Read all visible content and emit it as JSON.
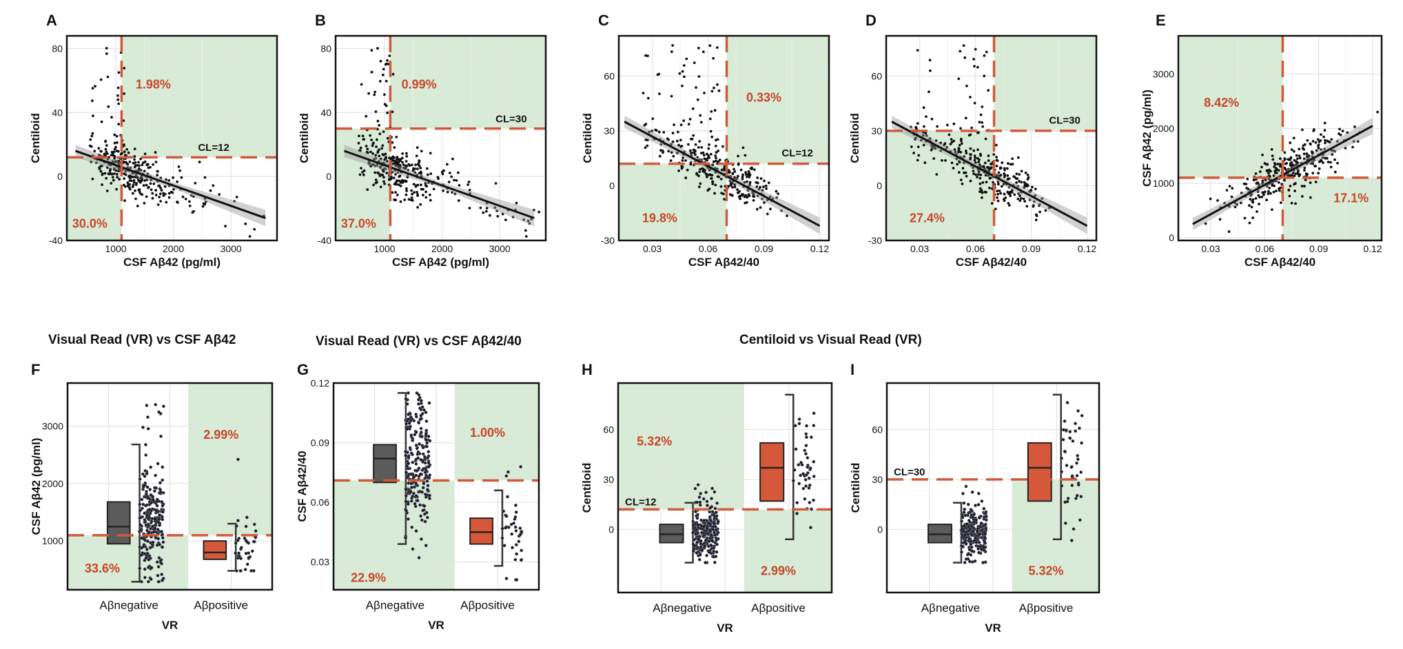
{
  "figure": {
    "titles": [
      {
        "text": "Visual Read (VR) vs CSF Aβ42"
      },
      {
        "text": "Visual Read (VR) vs CSF Aβ42/40"
      },
      {
        "text": "Centiloid  vs Visual Read (VR)"
      }
    ],
    "colors": {
      "shade": "#d7ebd6",
      "cut": "#d2593a",
      "pct": "#c8462a",
      "negBox": "#5b5b5b",
      "posBox": "#d6583a",
      "grid": "#e3e3e3",
      "dot": "#111111"
    }
  },
  "chart_data": [
    {
      "type": "scatter",
      "panel": "A",
      "xlabel": "CSF Aβ42 (pg/ml)",
      "ylabel": "Centiloid",
      "xlim": [
        150,
        3800
      ],
      "ylim": [
        -40,
        88
      ],
      "xticks": [
        "1000",
        "2000",
        "3000"
      ],
      "xtickValues": [
        1000,
        2000,
        3000
      ],
      "yticks": [
        "-40",
        "0",
        "40",
        "80"
      ],
      "ytickValues": [
        -40,
        0,
        40,
        80
      ],
      "cut_x": 1100,
      "cut_y": 12,
      "cut_label": "CL=12",
      "cut_label_at": [
        2700,
        16
      ],
      "regression": {
        "x0": 300,
        "y0": 16,
        "x1": 3600,
        "y1": -26
      },
      "shades": [
        [
          1100,
          3800,
          12,
          88
        ],
        [
          150,
          1100,
          -40,
          12
        ]
      ],
      "percents": [
        {
          "text": "1.98%",
          "x": 1650,
          "y": 55
        },
        {
          "text": "30.0%",
          "x": 550,
          "y": -32
        }
      ],
      "seed": 11,
      "n": 330
    },
    {
      "type": "scatter",
      "panel": "B",
      "xlabel": "CSF Aβ42 (pg/ml)",
      "ylabel": "Centiloid",
      "xlim": [
        150,
        3800
      ],
      "ylim": [
        -40,
        88
      ],
      "xticks": [
        "1000",
        "2000",
        "3000"
      ],
      "xtickValues": [
        1000,
        2000,
        3000
      ],
      "yticks": [
        "-40",
        "0",
        "40",
        "80"
      ],
      "ytickValues": [
        -40,
        0,
        40,
        80
      ],
      "cut_x": 1100,
      "cut_y": 30,
      "cut_label": "CL=30",
      "cut_label_at": [
        3200,
        34
      ],
      "regression": {
        "x0": 300,
        "y0": 16,
        "x1": 3600,
        "y1": -26
      },
      "shades": [
        [
          1100,
          3800,
          30,
          88
        ],
        [
          150,
          1100,
          -40,
          30
        ]
      ],
      "percents": [
        {
          "text": "0.99%",
          "x": 1600,
          "y": 55
        },
        {
          "text": "37.0%",
          "x": 550,
          "y": -32
        }
      ],
      "seed": 23,
      "n": 330
    },
    {
      "type": "scatter",
      "panel": "C",
      "xlabel": "CSF Aβ42/40",
      "ylabel": "Centiloid",
      "xlim": [
        0.012,
        0.125
      ],
      "ylim": [
        -30,
        82
      ],
      "xticks": [
        "0.03",
        "0.06",
        "0.09",
        "0.12"
      ],
      "xtickValues": [
        0.03,
        0.06,
        0.09,
        0.12
      ],
      "yticks": [
        "-30",
        "0",
        "30",
        "60"
      ],
      "ytickValues": [
        -30,
        0,
        30,
        60
      ],
      "cut_x": 0.07,
      "cut_y": 12,
      "cut_label": "CL=12",
      "cut_label_at": [
        0.108,
        16
      ],
      "regression": {
        "x0": 0.015,
        "y0": 35,
        "x1": 0.12,
        "y1": -22
      },
      "shades": [
        [
          0.07,
          0.125,
          12,
          82
        ],
        [
          0.012,
          0.07,
          -30,
          12
        ]
      ],
      "percents": [
        {
          "text": "0.33%",
          "x": 0.09,
          "y": 46
        },
        {
          "text": "19.8%",
          "x": 0.034,
          "y": -20
        }
      ],
      "seed": 37,
      "n": 330
    },
    {
      "type": "scatter",
      "panel": "D",
      "xlabel": "CSF Aβ42/40",
      "ylabel": "Centiloid",
      "xlim": [
        0.012,
        0.125
      ],
      "ylim": [
        -30,
        82
      ],
      "xticks": [
        "0.03",
        "0.06",
        "0.09",
        "0.12"
      ],
      "xtickValues": [
        0.03,
        0.06,
        0.09,
        0.12
      ],
      "yticks": [
        "-30",
        "0",
        "30",
        "60"
      ],
      "ytickValues": [
        -30,
        0,
        30,
        60
      ],
      "cut_x": 0.07,
      "cut_y": 30,
      "cut_label": "CL=30",
      "cut_label_at": [
        0.108,
        34
      ],
      "regression": {
        "x0": 0.015,
        "y0": 35,
        "x1": 0.12,
        "y1": -22
      },
      "shades": [
        [
          0.07,
          0.125,
          30,
          82
        ],
        [
          0.012,
          0.07,
          -30,
          30
        ]
      ],
      "percents": [
        {
          "text": "27.4%",
          "x": 0.034,
          "y": -20
        }
      ],
      "seed": 41,
      "n": 330
    },
    {
      "type": "scatter",
      "panel": "E",
      "xlabel": "CSF Aβ42/40",
      "ylabel": "CSF Aβ42 (pg/ml)",
      "xlim": [
        0.012,
        0.125
      ],
      "ylim": [
        -50,
        3700
      ],
      "xticks": [
        "0.03",
        "0.06",
        "0.09",
        "0.12"
      ],
      "xtickValues": [
        0.03,
        0.06,
        0.09,
        0.12
      ],
      "yticks": [
        "0",
        "1000",
        "2000",
        "3000"
      ],
      "ytickValues": [
        0,
        1000,
        2000,
        3000
      ],
      "cut_x": 0.07,
      "cut_y": 1100,
      "cut_label": "",
      "cut_label_at": [
        0,
        0
      ],
      "regression": {
        "x0": 0.02,
        "y0": 250,
        "x1": 0.12,
        "y1": 2050
      },
      "shades": [
        [
          0.012,
          0.07,
          1100,
          3700
        ],
        [
          0.07,
          0.125,
          -50,
          1100
        ]
      ],
      "percents": [
        {
          "text": "8.42%",
          "x": 0.036,
          "y": 2400
        },
        {
          "text": "17.1%",
          "x": 0.108,
          "y": 650
        }
      ],
      "seed": 53,
      "n": 330
    },
    {
      "type": "box",
      "panel": "F",
      "xlabel": "VR",
      "ylabel": "CSF Aβ42 (pg/ml)",
      "ylim": [
        150,
        3750
      ],
      "yticks": [
        "1000",
        "2000",
        "3000"
      ],
      "ytickValues": [
        1000,
        2000,
        3000
      ],
      "categories": [
        "Aβnegative",
        "Aβpositive"
      ],
      "boxes": [
        {
          "min": 290,
          "q1": 950,
          "median": 1250,
          "q3": 1680,
          "max": 2680,
          "color": "neg"
        },
        {
          "min": 480,
          "q1": 680,
          "median": 800,
          "q3": 1000,
          "max": 1300,
          "color": "pos"
        }
      ],
      "jitter": [
        {
          "n": 240,
          "center": 1250,
          "spread": 480,
          "min": 290,
          "max": 3580
        },
        {
          "n": 40,
          "center": 800,
          "spread": 350,
          "min": 480,
          "max": 2450
        }
      ],
      "cut_y": 1100,
      "cut_label": "",
      "shades": [
        [
          1,
          2,
          1100,
          3750
        ],
        [
          0,
          1,
          150,
          1100
        ]
      ],
      "percents": [
        {
          "text": "2.99%",
          "cat": 1,
          "y": 2850
        },
        {
          "text": "33.6%",
          "cat": 0,
          "y": 520
        }
      ],
      "seed": 61
    },
    {
      "type": "box",
      "panel": "G",
      "xlabel": "VR",
      "ylabel": "CSF Aβ42/40",
      "ylim": [
        0.016,
        0.12
      ],
      "yticks": [
        "0.03",
        "0.06",
        "0.09",
        "0.12"
      ],
      "ytickValues": [
        0.03,
        0.06,
        0.09,
        0.12
      ],
      "categories": [
        "Aβnegative",
        "Aβpositive"
      ],
      "boxes": [
        {
          "min": 0.039,
          "q1": 0.07,
          "median": 0.082,
          "q3": 0.089,
          "max": 0.115,
          "color": "neg"
        },
        {
          "min": 0.028,
          "q1": 0.039,
          "median": 0.045,
          "q3": 0.052,
          "max": 0.066,
          "color": "pos"
        }
      ],
      "jitter": [
        {
          "n": 240,
          "center": 0.08,
          "spread": 0.018,
          "min": 0.026,
          "max": 0.115
        },
        {
          "n": 40,
          "center": 0.046,
          "spread": 0.012,
          "min": 0.021,
          "max": 0.097
        }
      ],
      "cut_y": 0.071,
      "cut_label": "",
      "shades": [
        [
          1,
          2,
          0.071,
          0.12
        ],
        [
          0,
          1,
          0.016,
          0.071
        ]
      ],
      "percents": [
        {
          "text": "1.00%",
          "cat": 1,
          "y": 0.095
        },
        {
          "text": "22.9%",
          "cat": 0,
          "y": 0.022
        }
      ],
      "seed": 71
    },
    {
      "type": "box",
      "panel": "H",
      "xlabel": "VR",
      "ylabel": "Centiloid",
      "ylim": [
        -38,
        88
      ],
      "yticks": [
        "0",
        "30",
        "60"
      ],
      "ytickValues": [
        0,
        30,
        60
      ],
      "categories": [
        "Aβnegative",
        "Aβpositive"
      ],
      "boxes": [
        {
          "min": -20,
          "q1": -8,
          "median": -3,
          "q3": 3,
          "max": 16,
          "color": "neg"
        },
        {
          "min": -6,
          "q1": 17,
          "median": 37,
          "q3": 52,
          "max": 81,
          "color": "pos"
        }
      ],
      "jitter": [
        {
          "n": 240,
          "center": -3,
          "spread": 8,
          "min": -20,
          "max": 27
        },
        {
          "n": 45,
          "center": 36,
          "spread": 20,
          "min": -7,
          "max": 82
        }
      ],
      "cut_y": 12,
      "cut_label": "CL=12",
      "shades": [
        [
          0,
          1,
          12,
          88
        ],
        [
          1,
          2,
          -38,
          12
        ]
      ],
      "percents": [
        {
          "text": "5.32%",
          "cat": 0,
          "y": 53
        },
        {
          "text": "2.99%",
          "cat": 1,
          "y": -25
        }
      ],
      "seed": 83
    },
    {
      "type": "box",
      "panel": "I",
      "xlabel": "VR",
      "ylabel": "Centiloid",
      "ylim": [
        -38,
        88
      ],
      "yticks": [
        "0",
        "30",
        "60"
      ],
      "ytickValues": [
        0,
        30,
        60
      ],
      "categories": [
        "Aβnegative",
        "Aβpositive"
      ],
      "boxes": [
        {
          "min": -20,
          "q1": -8,
          "median": -3,
          "q3": 3,
          "max": 16,
          "color": "neg"
        },
        {
          "min": -6,
          "q1": 17,
          "median": 37,
          "q3": 52,
          "max": 81,
          "color": "pos"
        }
      ],
      "jitter": [
        {
          "n": 240,
          "center": -3,
          "spread": 8,
          "min": -20,
          "max": 27
        },
        {
          "n": 45,
          "center": 36,
          "spread": 20,
          "min": -7,
          "max": 82
        }
      ],
      "cut_y": 30,
      "cut_label": "CL=30",
      "shades": [
        [
          1,
          2,
          -38,
          30
        ]
      ],
      "percents": [
        {
          "text": "5.32%",
          "cat": 1,
          "y": -25
        }
      ],
      "seed": 97
    }
  ]
}
